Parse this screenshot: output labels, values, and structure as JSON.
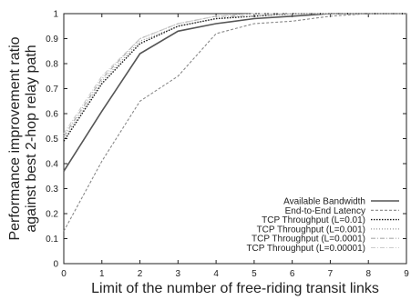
{
  "chart_data": {
    "type": "line",
    "xlabel": "Limit of the number of free-riding transit links",
    "ylabel_line1": "Performance improvement ratio",
    "ylabel_line2": "against best 2-hop relay path",
    "xlim": [
      0,
      9
    ],
    "ylim": [
      0,
      1
    ],
    "x_ticks": [
      0,
      1,
      2,
      3,
      4,
      5,
      6,
      7,
      8,
      9
    ],
    "y_ticks": [
      0,
      0.1,
      0.2,
      0.3,
      0.4,
      0.5,
      0.6,
      0.7,
      0.8,
      0.9,
      1
    ],
    "grid": false,
    "legend_position": "bottom-right",
    "x": [
      0,
      1,
      2,
      3,
      4,
      5,
      6,
      7,
      8,
      9
    ],
    "series": [
      {
        "name": "Available Bandwidth",
        "color": "#555555",
        "dash": "solid",
        "values": [
          0.37,
          0.61,
          0.84,
          0.93,
          0.96,
          0.98,
          0.99,
          1.0,
          1.0,
          1.0
        ]
      },
      {
        "name": "End-to-End Latency",
        "color": "#888888",
        "dash": "dashed",
        "values": [
          0.13,
          0.41,
          0.65,
          0.75,
          0.92,
          0.96,
          0.97,
          0.99,
          1.0,
          1.0
        ]
      },
      {
        "name": "TCP Throughput (L=0.01)",
        "color": "#111111",
        "dash": "dotted",
        "values": [
          0.49,
          0.72,
          0.88,
          0.95,
          0.98,
          0.99,
          1.0,
          1.0,
          1.0,
          1.0
        ]
      },
      {
        "name": "TCP Throughput (L=0.001)",
        "color": "#999999",
        "dash": "dotted-fine",
        "values": [
          0.5,
          0.73,
          0.89,
          0.95,
          0.98,
          0.99,
          1.0,
          1.0,
          1.0,
          1.0
        ]
      },
      {
        "name": "TCP Throughput (L=0.0001)",
        "color": "#aaaaaa",
        "dash": "dashdot",
        "values": [
          0.51,
          0.74,
          0.9,
          0.96,
          0.99,
          0.99,
          1.0,
          1.0,
          1.0,
          1.0
        ]
      },
      {
        "name": "TCP Throughput (L=0.00001)",
        "color": "#cccccc",
        "dash": "dashdot",
        "values": [
          0.52,
          0.75,
          0.9,
          0.96,
          0.99,
          1.0,
          1.0,
          1.0,
          1.0,
          1.0
        ]
      }
    ]
  }
}
